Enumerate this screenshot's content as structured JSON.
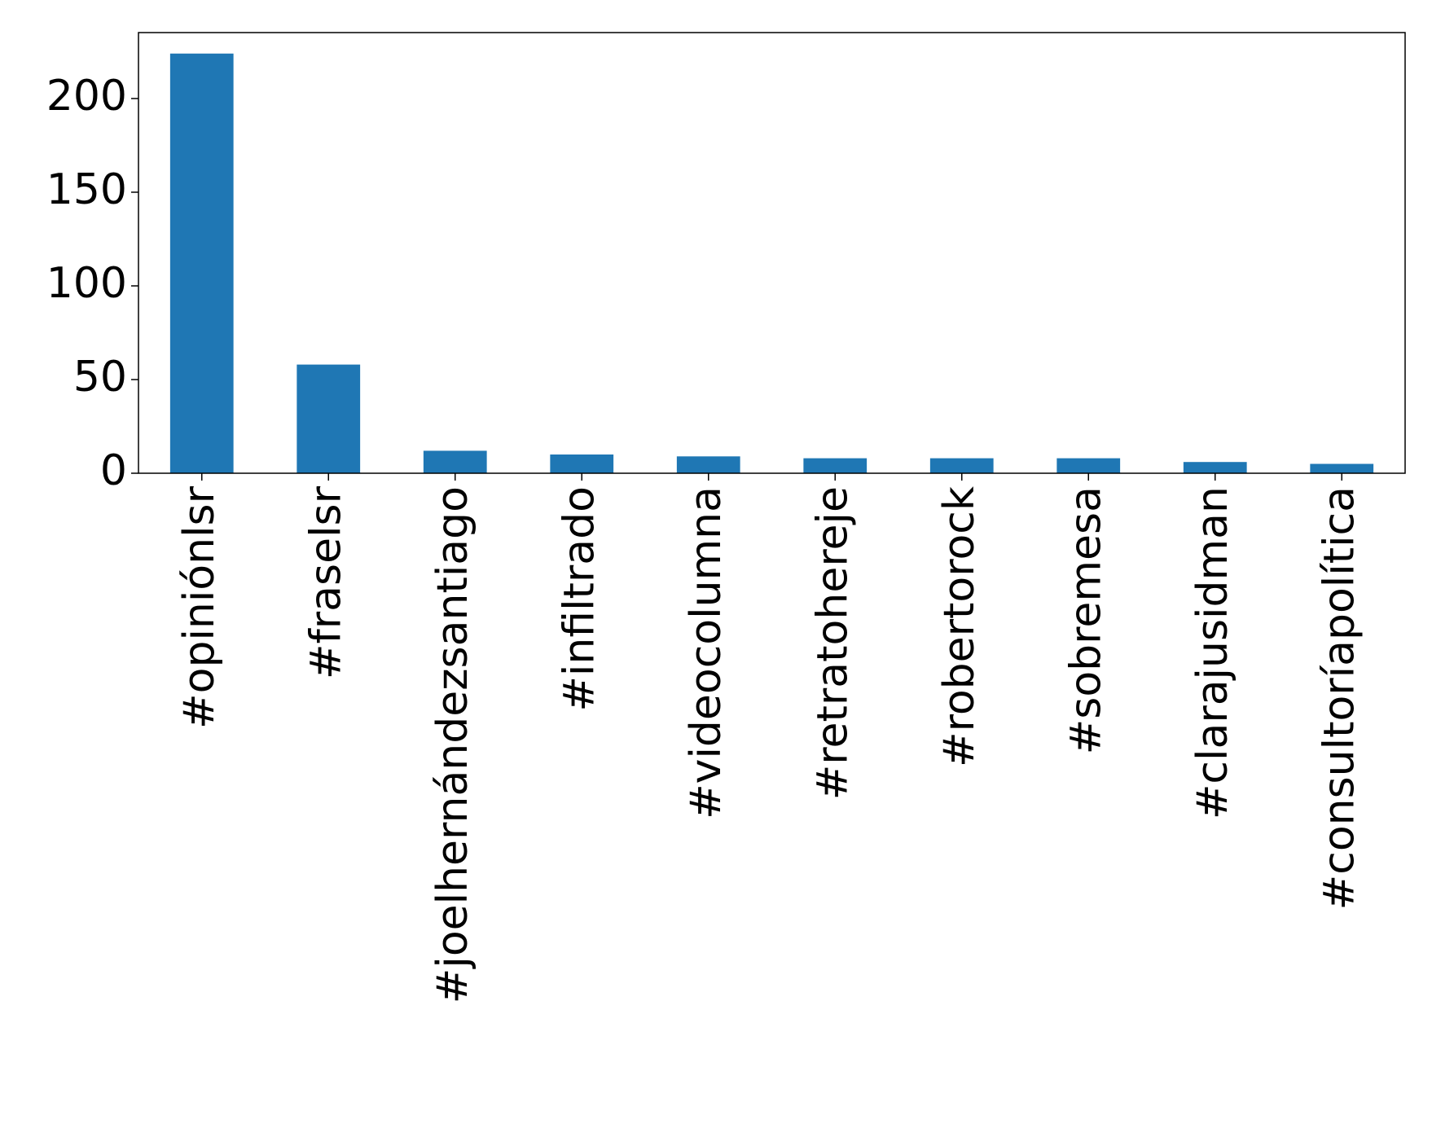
{
  "chart_data": {
    "type": "bar",
    "categories": [
      "#opiniónlsr",
      "#fraselsr",
      "#joelhernándezsantiago",
      "#infiltrado",
      "#videocolumna",
      "#retratohereje",
      "#robertorock",
      "#sobremesa",
      "#clarajusidman",
      "#consultoríapolítica"
    ],
    "values": [
      224,
      58,
      12,
      10,
      9,
      8,
      8,
      8,
      6,
      5
    ],
    "color": "#1f77b4",
    "ylim": [
      0,
      235.2
    ],
    "yticks": [
      0,
      50,
      100,
      150,
      200
    ],
    "grid": false
  }
}
